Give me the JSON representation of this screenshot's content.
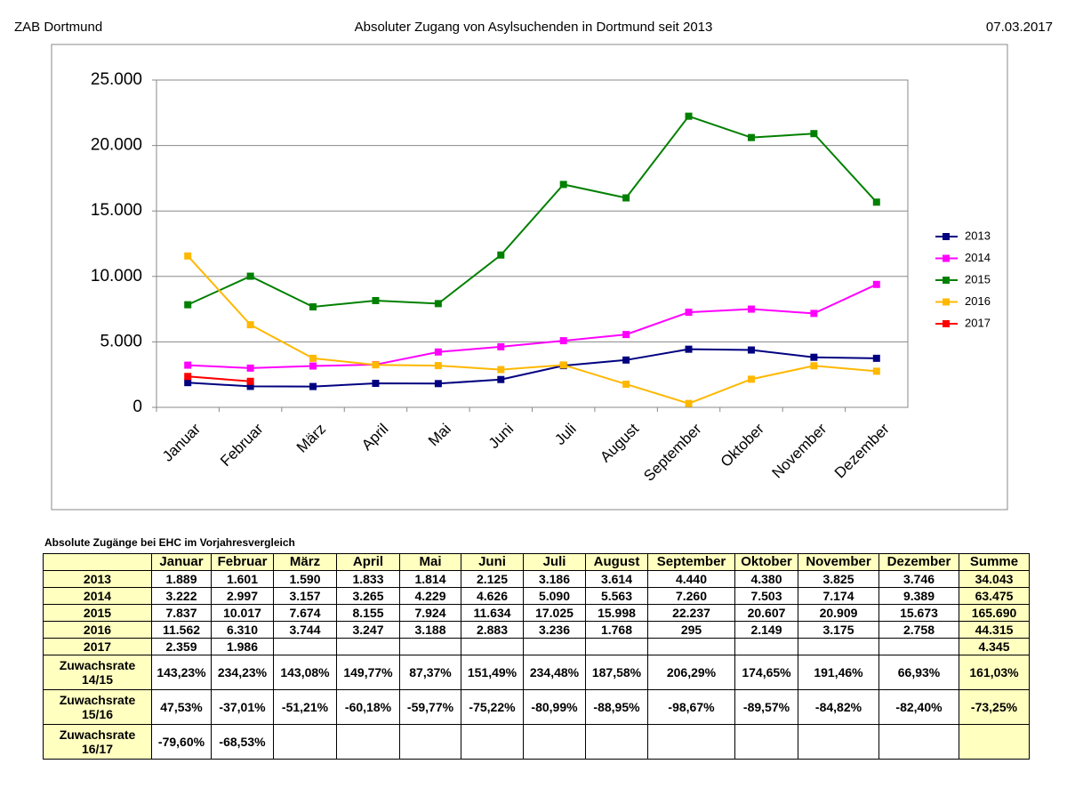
{
  "header": {
    "left": "ZAB Dortmund",
    "date": "07.03.2017"
  },
  "chart_data": {
    "type": "line",
    "title": "Absoluter Zugang von Asylsuchenden in Dortmund seit 2013",
    "categories": [
      "Januar",
      "Februar",
      "März",
      "April",
      "Mai",
      "Juni",
      "Juli",
      "August",
      "September",
      "Oktober",
      "November",
      "Dezember"
    ],
    "series": [
      {
        "name": "2013",
        "color": "#000080",
        "values": [
          1889,
          1601,
          1590,
          1833,
          1814,
          2125,
          3186,
          3614,
          4440,
          4380,
          3825,
          3746
        ]
      },
      {
        "name": "2014",
        "color": "#ff00ff",
        "values": [
          3222,
          2997,
          3157,
          3265,
          4229,
          4626,
          5090,
          5563,
          7260,
          7503,
          7174,
          9389
        ]
      },
      {
        "name": "2015",
        "color": "#008000",
        "values": [
          7837,
          10017,
          7674,
          8155,
          7924,
          11634,
          17025,
          15998,
          22237,
          20607,
          20909,
          15673
        ]
      },
      {
        "name": "2016",
        "color": "#ffb800",
        "values": [
          11562,
          6310,
          3744,
          3247,
          3188,
          2883,
          3236,
          1768,
          295,
          2149,
          3175,
          2758
        ]
      },
      {
        "name": "2017",
        "color": "#ff0000",
        "values": [
          2359,
          1986,
          null,
          null,
          null,
          null,
          null,
          null,
          null,
          null,
          null,
          null
        ]
      }
    ],
    "ylim": [
      0,
      25000
    ],
    "yticks": [
      0,
      {
        "value": 5000,
        "label": "5.000"
      },
      {
        "value": 10000,
        "label": "10.000"
      },
      {
        "value": 15000,
        "label": "15.000"
      },
      {
        "value": 20000,
        "label": "20.000"
      },
      {
        "value": 25000,
        "label": "25.000"
      }
    ],
    "grid": true,
    "legend": "right"
  },
  "table": {
    "title": "Absolute Zugänge bei EHC im Vorjahresvergleich",
    "columns": [
      "Januar",
      "Februar",
      "März",
      "April",
      "Mai",
      "Juni",
      "Juli",
      "August",
      "September",
      "Oktober",
      "November",
      "Dezember",
      "Summe"
    ],
    "rows": [
      {
        "label": "2013",
        "cells": [
          "1.889",
          "1.601",
          "1.590",
          "1.833",
          "1.814",
          "2.125",
          "3.186",
          "3.614",
          "4.440",
          "4.380",
          "3.825",
          "3.746",
          "34.043"
        ]
      },
      {
        "label": "2014",
        "cells": [
          "3.222",
          "2.997",
          "3.157",
          "3.265",
          "4.229",
          "4.626",
          "5.090",
          "5.563",
          "7.260",
          "7.503",
          "7.174",
          "9.389",
          "63.475"
        ]
      },
      {
        "label": "2015",
        "cells": [
          "7.837",
          "10.017",
          "7.674",
          "8.155",
          "7.924",
          "11.634",
          "17.025",
          "15.998",
          "22.237",
          "20.607",
          "20.909",
          "15.673",
          "165.690"
        ]
      },
      {
        "label": "2016",
        "cells": [
          "11.562",
          "6.310",
          "3.744",
          "3.247",
          "3.188",
          "2.883",
          "3.236",
          "1.768",
          "295",
          "2.149",
          "3.175",
          "2.758",
          "44.315"
        ]
      },
      {
        "label": "2017",
        "cells": [
          "2.359",
          "1.986",
          null,
          null,
          null,
          null,
          null,
          null,
          null,
          null,
          null,
          null,
          "4.345"
        ]
      },
      {
        "label": "Zuwachsrate 14/15",
        "cells": [
          "143,23%",
          "234,23%",
          "143,08%",
          "149,77%",
          "87,37%",
          "151,49%",
          "234,48%",
          "187,58%",
          "206,29%",
          "174,65%",
          "191,46%",
          "66,93%",
          "161,03%"
        ]
      },
      {
        "label": "Zuwachsrate 15/16",
        "cells": [
          "47,53%",
          "-37,01%",
          "-51,21%",
          "-60,18%",
          "-59,77%",
          "-75,22%",
          "-80,99%",
          "-88,95%",
          "-98,67%",
          "-89,57%",
          "-84,82%",
          "-82,40%",
          "-73,25%"
        ]
      },
      {
        "label": "Zuwachsrate 16/17",
        "cells": [
          "-79,60%",
          "-68,53%",
          null,
          null,
          null,
          null,
          null,
          null,
          null,
          null,
          null,
          null,
          null
        ]
      }
    ]
  }
}
